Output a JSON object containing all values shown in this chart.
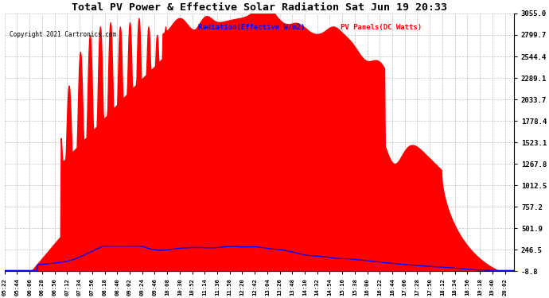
{
  "title": "Total PV Power & Effective Solar Radiation Sat Jun 19 20:33",
  "copyright": "Copyright 2021 Cartronics.com",
  "legend_radiation": "Radiation(Effective W/m2)",
  "legend_pv": "PV Panels(DC Watts)",
  "ylabel_right_ticks": [
    3055.0,
    2799.7,
    2544.4,
    2289.1,
    2033.7,
    1778.4,
    1523.1,
    1267.8,
    1012.5,
    757.2,
    501.9,
    246.5,
    -8.8
  ],
  "ymin": -8.8,
  "ymax": 3055.0,
  "background_color": "#ffffff",
  "plot_bg_color": "#ffffff",
  "grid_color": "#b0b0b0",
  "pv_fill_color": "#ff0000",
  "radiation_line_color": "#0000ff",
  "title_color": "#000000",
  "copyright_color": "#000000",
  "radiation_label_color": "#0000ff",
  "pv_label_color": "#ff0000",
  "tick_interval_minutes": 22
}
